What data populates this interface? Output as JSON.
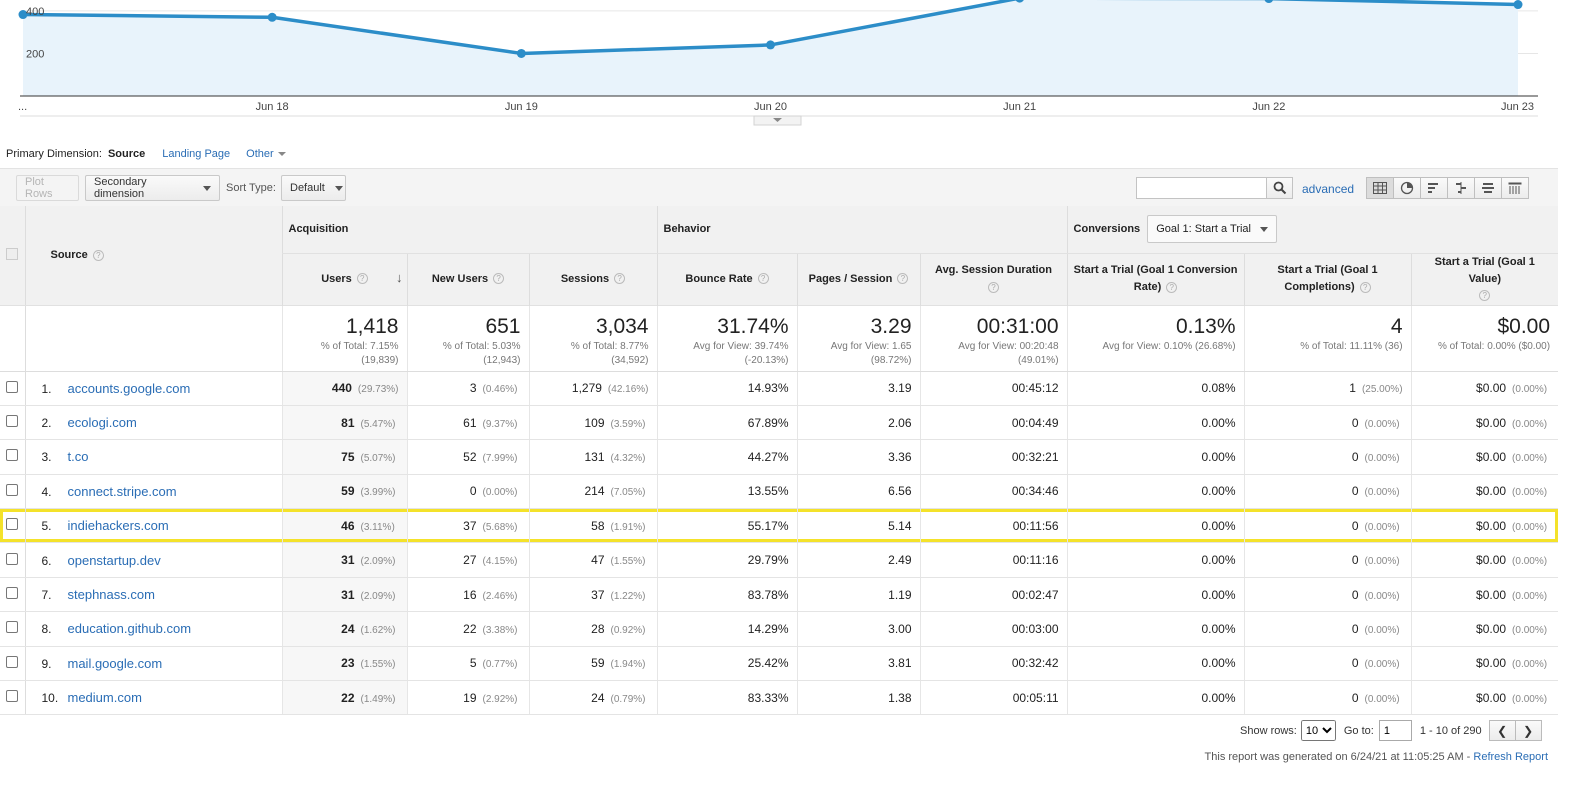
{
  "chart_data": {
    "type": "area",
    "x_labels": [
      "...",
      "Jun 18",
      "Jun 19",
      "Jun 20",
      "Jun 21",
      "Jun 22",
      "Jun 23"
    ],
    "values": [
      383,
      370,
      200,
      240,
      460,
      458,
      430
    ],
    "y_ticks": [
      "400",
      "200"
    ],
    "ylim": [
      0,
      470
    ],
    "grid": true,
    "color": "#2c8dc8"
  },
  "primary_dimension": {
    "label": "Primary Dimension:",
    "active": "Source",
    "links": [
      "Landing Page",
      "Other"
    ]
  },
  "toolbar": {
    "plot_rows": "Plot Rows",
    "secondary_dimension": "Secondary dimension",
    "sort_type_label": "Sort Type:",
    "sort_type_value": "Default",
    "search_placeholder": "",
    "advanced": "advanced"
  },
  "table": {
    "header": {
      "source": "Source",
      "acquisition": "Acquisition",
      "behavior": "Behavior",
      "conversions": "Conversions",
      "goal_select": "Goal 1: Start a Trial",
      "users": "Users",
      "new_users": "New Users",
      "sessions": "Sessions",
      "bounce_rate": "Bounce Rate",
      "pages_session": "Pages / Session",
      "avg_duration": "Avg. Session Duration",
      "conv_rate": "Start a Trial (Goal 1 Conversion Rate)",
      "completions": "Start a Trial (Goal 1 Completions)",
      "value": "Start a Trial (Goal 1 Value)"
    },
    "totals": {
      "users": {
        "big": "1,418",
        "sub1": "% of Total: 7.15%",
        "sub2": "(19,839)"
      },
      "new_users": {
        "big": "651",
        "sub1": "% of Total: 5.03%",
        "sub2": "(12,943)"
      },
      "sessions": {
        "big": "3,034",
        "sub1": "% of Total: 8.77%",
        "sub2": "(34,592)"
      },
      "bounce_rate": {
        "big": "31.74%",
        "sub1": "Avg for View: 39.74%",
        "sub2": "(-20.13%)"
      },
      "pages_session": {
        "big": "3.29",
        "sub1": "Avg for View: 1.65",
        "sub2": "(98.72%)"
      },
      "avg_duration": {
        "big": "00:31:00",
        "sub1": "Avg for View: 00:20:48",
        "sub2": "(49.01%)"
      },
      "conv_rate": {
        "big": "0.13%",
        "sub1": "Avg for View: 0.10% (26.68%)",
        "sub2": ""
      },
      "completions": {
        "big": "4",
        "sub1": "% of Total: 11.11% (36)",
        "sub2": ""
      },
      "value": {
        "big": "$0.00",
        "sub1": "% of Total: 0.00% ($0.00)",
        "sub2": ""
      }
    },
    "rows": [
      {
        "idx": "1.",
        "source": "accounts.google.com",
        "users": "440",
        "users_pct": "(29.73%)",
        "new_users": "3",
        "new_users_pct": "(0.46%)",
        "sessions": "1,279",
        "sessions_pct": "(42.16%)",
        "bounce": "14.93%",
        "pages": "3.19",
        "duration": "00:45:12",
        "conv": "0.08%",
        "comp": "1",
        "comp_pct": "(25.00%)",
        "value": "$0.00",
        "value_pct": "(0.00%)"
      },
      {
        "idx": "2.",
        "source": "ecologi.com",
        "users": "81",
        "users_pct": "(5.47%)",
        "new_users": "61",
        "new_users_pct": "(9.37%)",
        "sessions": "109",
        "sessions_pct": "(3.59%)",
        "bounce": "67.89%",
        "pages": "2.06",
        "duration": "00:04:49",
        "conv": "0.00%",
        "comp": "0",
        "comp_pct": "(0.00%)",
        "value": "$0.00",
        "value_pct": "(0.00%)"
      },
      {
        "idx": "3.",
        "source": "t.co",
        "users": "75",
        "users_pct": "(5.07%)",
        "new_users": "52",
        "new_users_pct": "(7.99%)",
        "sessions": "131",
        "sessions_pct": "(4.32%)",
        "bounce": "44.27%",
        "pages": "3.36",
        "duration": "00:32:21",
        "conv": "0.00%",
        "comp": "0",
        "comp_pct": "(0.00%)",
        "value": "$0.00",
        "value_pct": "(0.00%)"
      },
      {
        "idx": "4.",
        "source": "connect.stripe.com",
        "users": "59",
        "users_pct": "(3.99%)",
        "new_users": "0",
        "new_users_pct": "(0.00%)",
        "sessions": "214",
        "sessions_pct": "(7.05%)",
        "bounce": "13.55%",
        "pages": "6.56",
        "duration": "00:34:46",
        "conv": "0.00%",
        "comp": "0",
        "comp_pct": "(0.00%)",
        "value": "$0.00",
        "value_pct": "(0.00%)"
      },
      {
        "idx": "5.",
        "source": "indiehackers.com",
        "users": "46",
        "users_pct": "(3.11%)",
        "new_users": "37",
        "new_users_pct": "(5.68%)",
        "sessions": "58",
        "sessions_pct": "(1.91%)",
        "bounce": "55.17%",
        "pages": "5.14",
        "duration": "00:11:56",
        "conv": "0.00%",
        "comp": "0",
        "comp_pct": "(0.00%)",
        "value": "$0.00",
        "value_pct": "(0.00%)"
      },
      {
        "idx": "6.",
        "source": "openstartup.dev",
        "users": "31",
        "users_pct": "(2.09%)",
        "new_users": "27",
        "new_users_pct": "(4.15%)",
        "sessions": "47",
        "sessions_pct": "(1.55%)",
        "bounce": "29.79%",
        "pages": "2.49",
        "duration": "00:11:16",
        "conv": "0.00%",
        "comp": "0",
        "comp_pct": "(0.00%)",
        "value": "$0.00",
        "value_pct": "(0.00%)"
      },
      {
        "idx": "7.",
        "source": "stephnass.com",
        "users": "31",
        "users_pct": "(2.09%)",
        "new_users": "16",
        "new_users_pct": "(2.46%)",
        "sessions": "37",
        "sessions_pct": "(1.22%)",
        "bounce": "83.78%",
        "pages": "1.19",
        "duration": "00:02:47",
        "conv": "0.00%",
        "comp": "0",
        "comp_pct": "(0.00%)",
        "value": "$0.00",
        "value_pct": "(0.00%)"
      },
      {
        "idx": "8.",
        "source": "education.github.com",
        "users": "24",
        "users_pct": "(1.62%)",
        "new_users": "22",
        "new_users_pct": "(3.38%)",
        "sessions": "28",
        "sessions_pct": "(0.92%)",
        "bounce": "14.29%",
        "pages": "3.00",
        "duration": "00:03:00",
        "conv": "0.00%",
        "comp": "0",
        "comp_pct": "(0.00%)",
        "value": "$0.00",
        "value_pct": "(0.00%)"
      },
      {
        "idx": "9.",
        "source": "mail.google.com",
        "users": "23",
        "users_pct": "(1.55%)",
        "new_users": "5",
        "new_users_pct": "(0.77%)",
        "sessions": "59",
        "sessions_pct": "(1.94%)",
        "bounce": "25.42%",
        "pages": "3.81",
        "duration": "00:32:42",
        "conv": "0.00%",
        "comp": "0",
        "comp_pct": "(0.00%)",
        "value": "$0.00",
        "value_pct": "(0.00%)"
      },
      {
        "idx": "10.",
        "source": "medium.com",
        "users": "22",
        "users_pct": "(1.49%)",
        "new_users": "19",
        "new_users_pct": "(2.92%)",
        "sessions": "24",
        "sessions_pct": "(0.79%)",
        "bounce": "83.33%",
        "pages": "1.38",
        "duration": "00:05:11",
        "conv": "0.00%",
        "comp": "0",
        "comp_pct": "(0.00%)",
        "value": "$0.00",
        "value_pct": "(0.00%)"
      }
    ],
    "highlight_color": "#f4e22a"
  },
  "pager": {
    "show_rows_label": "Show rows:",
    "show_rows_value": "10",
    "goto_label": "Go to:",
    "goto_value": "1",
    "range": "1 - 10 of 290"
  },
  "footer": {
    "note": "This report was generated on 6/24/21 at 11:05:25 AM -",
    "refresh": "Refresh Report"
  }
}
